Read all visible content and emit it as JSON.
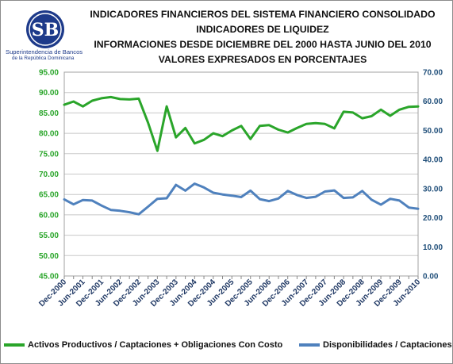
{
  "header": {
    "logo_monogram": "SB",
    "logo_name": "Superintendencia de Bancos",
    "logo_country": "de la República Dominicana",
    "title_lines": [
      "INDICADORES FINANCIEROS  DEL SISTEMA FINANCIERO CONSOLIDADO",
      "INDICADORES DE LIQUIDEZ",
      "INFORMACIONES DESDE DICIEMBRE DEL 2000  HASTA JUNIO DEL 2010",
      "VALORES EXPRESADOS EN PORCENTAJES"
    ]
  },
  "colors": {
    "green": "#2aa52a",
    "blue": "#4f81bd",
    "left_axis_text": "#2aa52a",
    "right_axis_text": "#1f4e79"
  },
  "chart_data": {
    "type": "line",
    "title": "INDICADORES FINANCIEROS  DEL SISTEMA FINANCIERO CONSOLIDADO",
    "y_left_ticks": [
      "45.00",
      "50.00",
      "55.00",
      "60.00",
      "65.00",
      "70.00",
      "75.00",
      "80.00",
      "85.00",
      "90.00",
      "95.00"
    ],
    "y_right_ticks": [
      "0.00",
      "10.00",
      "20.00",
      "30.00",
      "40.00",
      "50.00",
      "60.00",
      "70.00"
    ],
    "ylim_left": [
      45,
      95
    ],
    "ylim_right": [
      0,
      70
    ],
    "grid": true,
    "legend_position": "bottom",
    "x": [
      "Dec-2000",
      "Mar-2001",
      "Jun-2001",
      "Sep-2001",
      "Dec-2001",
      "Mar-2002",
      "Jun-2002",
      "Sep-2002",
      "Dec-2002",
      "Mar-2003",
      "Jun-2003",
      "Sep-2003",
      "Dec-2003",
      "Mar-2004",
      "Jun-2004",
      "Sep-2004",
      "Dec-2004",
      "Mar-2005",
      "Jun-2005",
      "Sep-2005",
      "Dec-2005",
      "Mar-2006",
      "Jun-2006",
      "Sep-2006",
      "Dec-2006",
      "Mar-2007",
      "Jun-2007",
      "Sep-2007",
      "Dec-2007",
      "Mar-2008",
      "Jun-2008",
      "Sep-2008",
      "Dec-2008",
      "Mar-2009",
      "Jun-2009",
      "Sep-2009",
      "Dec-2009",
      "Mar-2010",
      "Jun-2010"
    ],
    "x_tick_labels": [
      "Dec-2000",
      "Jun-2001",
      "Dec-2001",
      "Jun-2002",
      "Dec-2002",
      "Jun-2003",
      "Dec-2003",
      "Jun-2004",
      "Dec-2004",
      "Jun-2005",
      "Dec-2005",
      "Jun-2006",
      "Dec-2006",
      "Jun-2007",
      "Dec-2007",
      "Jun-2008",
      "Dec-2008",
      "Jun-2009",
      "Dec-2009",
      "Jun-2010"
    ],
    "series": [
      {
        "name": "Activos Productivos / Captaciones + Obligaciones Con Costo",
        "axis": "left",
        "values": [
          87.0,
          87.8,
          86.6,
          88.0,
          88.6,
          88.9,
          88.4,
          88.3,
          88.5,
          82.6,
          75.7,
          86.6,
          79.0,
          81.3,
          77.5,
          78.4,
          80.0,
          79.3,
          80.7,
          81.8,
          78.6,
          81.8,
          82.0,
          80.9,
          80.2,
          81.3,
          82.3,
          82.5,
          82.3,
          81.2,
          85.3,
          85.1,
          83.7,
          84.2,
          85.8,
          84.3,
          85.8,
          86.5,
          86.6
        ]
      },
      {
        "name": "Disponibilidades / Captaciones",
        "axis": "right",
        "values": [
          26.3,
          24.6,
          26.1,
          25.9,
          24.2,
          22.7,
          22.4,
          21.9,
          21.2,
          23.8,
          26.5,
          26.7,
          31.3,
          29.3,
          31.7,
          30.4,
          28.6,
          28.0,
          27.6,
          27.1,
          29.3,
          26.4,
          25.7,
          26.6,
          29.2,
          27.8,
          26.8,
          27.2,
          29.0,
          29.4,
          26.8,
          27.0,
          29.2,
          26.2,
          24.5,
          26.5,
          25.9,
          23.5,
          23.1
        ]
      }
    ]
  }
}
